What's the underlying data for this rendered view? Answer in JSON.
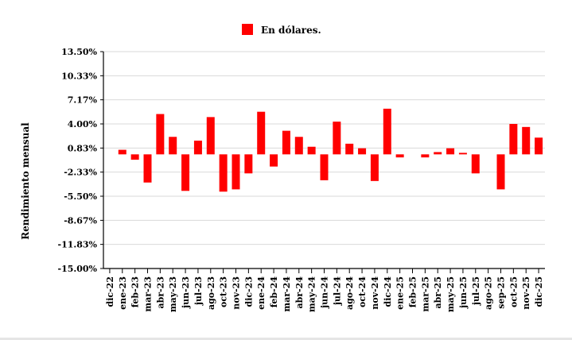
{
  "chart_data": {
    "type": "bar",
    "title": "",
    "ylabel": "Rendimiento mensual",
    "xlabel": "",
    "ylim": [
      -15.0,
      13.5
    ],
    "y_ticks": [
      "13.50%",
      "10.33%",
      "7.17%",
      "4.00%",
      "0.83%",
      "-2.33%",
      "-5.50%",
      "-8.67%",
      "-11.83%",
      "-15.00%"
    ],
    "y_tick_values": [
      13.5,
      10.33,
      7.17,
      4.0,
      0.83,
      -2.33,
      -5.5,
      -8.67,
      -11.83,
      -15.0
    ],
    "grid": true,
    "legend_position": "top-center",
    "categories": [
      "dic-22",
      "ene-23",
      "feb-23",
      "mar-23",
      "abr-23",
      "may-23",
      "jun-23",
      "jul-23",
      "ago-23",
      "oct-23",
      "nov-23",
      "dic-23",
      "ene-24",
      "feb-24",
      "mar-24",
      "abr-24",
      "may-24",
      "jun-24",
      "jul-24",
      "ago-24",
      "oct-24",
      "nov-24",
      "dic-24",
      "ene-25",
      "feb-25",
      "mar-25",
      "abr-25",
      "may-25",
      "jun-25",
      "jul-25",
      "ago-25",
      "sep-25",
      "oct-25",
      "nov-25",
      "dic-25"
    ],
    "series": [
      {
        "name": "En dólares.",
        "color": "#ff0000",
        "values": [
          0,
          0.6,
          -0.7,
          -3.7,
          5.3,
          2.3,
          -4.8,
          1.8,
          4.9,
          -4.9,
          -4.6,
          -2.5,
          5.6,
          -1.6,
          3.1,
          2.3,
          1.0,
          -3.4,
          4.3,
          1.4,
          0.8,
          -3.5,
          6.0,
          -0.4,
          0,
          -0.4,
          0.3,
          0.8,
          0.2,
          -2.5,
          0,
          -4.6,
          4.0,
          3.6,
          2.2
        ]
      }
    ]
  }
}
